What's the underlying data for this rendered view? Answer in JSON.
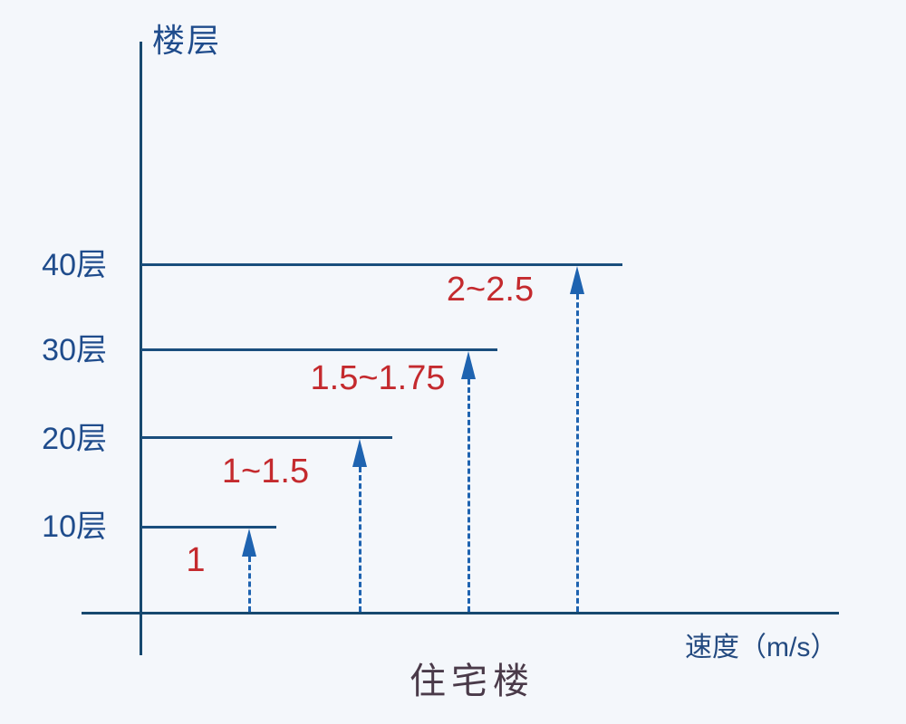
{
  "chart_data": {
    "type": "bar",
    "description": "Step chart of recommended elevator speed (m/s) versus number of floors in a residential building",
    "title": "住宅楼",
    "xlabel": "速度（m/s）",
    "ylabel": "楼层",
    "grid": false,
    "legend": "none",
    "categories": [
      "10层",
      "20层",
      "30层",
      "40层"
    ],
    "points": [
      {
        "floor_label": "10层",
        "floor": 10,
        "speed_label": "1",
        "speed_min": 1,
        "speed_max": 1
      },
      {
        "floor_label": "20层",
        "floor": 20,
        "speed_label": "1~1.5",
        "speed_min": 1,
        "speed_max": 1.5
      },
      {
        "floor_label": "30层",
        "floor": 30,
        "speed_label": "1.5~1.75",
        "speed_min": 1.5,
        "speed_max": 1.75
      },
      {
        "floor_label": "40层",
        "floor": 40,
        "speed_label": "2~2.5",
        "speed_min": 2,
        "speed_max": 2.5
      }
    ],
    "colors": {
      "background": "#f4f7fb",
      "axis": "#17496f",
      "floor_line": "#1a4e7d",
      "arrow": "#1e63b0",
      "floor_text": "#1f4c8c",
      "speed_text": "#c42a2e",
      "title_text": "#4a3a49"
    }
  }
}
